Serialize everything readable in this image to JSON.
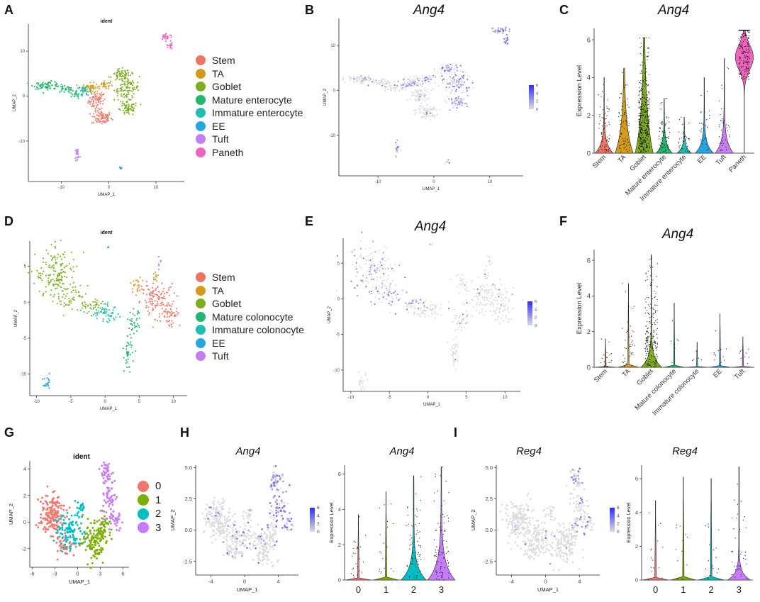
{
  "panel_letters": [
    "A",
    "B",
    "C",
    "D",
    "E",
    "F",
    "G",
    "H",
    "I"
  ],
  "colors": {
    "stem": "#ee7463",
    "ta": "#d39a1c",
    "goblet": "#7eae1f",
    "mature": "#23b66f",
    "immature": "#22bdb1",
    "ee": "#26a5e3",
    "tuft": "#c57ef2",
    "paneth": "#f064c0",
    "c0": "#f1766d",
    "c1": "#7cae00",
    "c2": "#00bfc4",
    "c3": "#c77cff",
    "feature_low": "#dcdcdc",
    "feature_high": "#2c2cff"
  },
  "legends": {
    "A": [
      "Stem",
      "TA",
      "Goblet",
      "Mature enterocyte",
      "Immature enterocyte",
      "EE",
      "Tuft",
      "Paneth"
    ],
    "D": [
      "Stem",
      "TA",
      "Goblet",
      "Mature colonocyte",
      "Immature colonocyte",
      "EE",
      "Tuft"
    ],
    "G": [
      "0",
      "1",
      "2",
      "3"
    ]
  },
  "chart_data": [
    {
      "panel": "A",
      "type": "scatter",
      "title": "ident",
      "xlabel": "UMAP_1",
      "ylabel": "UMAP_2",
      "xticks": [
        -10,
        0,
        10
      ],
      "yticks": [
        -10,
        0,
        10
      ],
      "xlim": [
        -17,
        16
      ],
      "ylim": [
        -19,
        16
      ],
      "clusters": [
        {
          "name": "Stem",
          "points": [
            [
              -2.5,
              -1,
              1.2,
              1.3,
              60
            ],
            [
              -1.5,
              -4.5,
              1.5,
              1.5,
              70
            ]
          ]
        },
        {
          "name": "TA",
          "points": [
            [
              -3.5,
              1.5,
              1.2,
              0.9,
              45
            ],
            [
              -1,
              2.2,
              1,
              0.8,
              25
            ]
          ]
        },
        {
          "name": "Goblet",
          "points": [
            [
              3.5,
              1.5,
              2,
              2,
              90
            ],
            [
              4,
              -2.5,
              1.5,
              1.2,
              50
            ],
            [
              2.5,
              4.5,
              1.5,
              1,
              45
            ]
          ]
        },
        {
          "name": "Mature enterocyte",
          "points": [
            [
              -13,
              2,
              2,
              0.6,
              60
            ],
            [
              -9,
              1.5,
              1.5,
              0.7,
              30
            ],
            [
              -7,
              0,
              1.5,
              0.6,
              20
            ]
          ]
        },
        {
          "name": "Immature enterocyte",
          "points": [
            [
              -5,
              1,
              1.2,
              0.7,
              25
            ]
          ]
        },
        {
          "name": "EE",
          "points": [
            [
              2.5,
              -16,
              0.3,
              0.5,
              8
            ]
          ]
        },
        {
          "name": "Tuft",
          "points": [
            [
              -6.5,
              -13,
              0.5,
              1.3,
              20
            ]
          ]
        },
        {
          "name": "Paneth",
          "points": [
            [
              12,
              13,
              1,
              0.6,
              25
            ],
            [
              13,
              11,
              0.5,
              1,
              15
            ]
          ]
        }
      ]
    },
    {
      "panel": "B",
      "type": "scatter",
      "title": "Ang4",
      "xlabel": "UMAP_1",
      "ylabel": "UMAP_2",
      "xticks": [
        -10,
        0,
        10
      ],
      "yticks": [
        -10,
        0,
        10
      ],
      "colorbar": [
        0,
        2,
        4,
        6
      ]
    },
    {
      "panel": "C",
      "type": "violin",
      "title": "Ang4",
      "ylabel": "Expression Level",
      "yticks": [
        0,
        2,
        4,
        6
      ],
      "ylim": [
        0,
        6.6
      ],
      "categories": [
        "Stem",
        "TA",
        "Goblet",
        "Mature enterocyte",
        "Immature enterocyte",
        "EE",
        "Tuft",
        "Paneth"
      ],
      "max_values": [
        4.0,
        4.5,
        6.1,
        2.9,
        1.9,
        4.0,
        5.0,
        6.5
      ]
    },
    {
      "panel": "D",
      "type": "scatter",
      "title": "ident",
      "xlabel": "UMAP_1",
      "ylabel": "UMAP_2",
      "xticks": [
        -10,
        -5,
        0,
        5,
        10
      ],
      "yticks": [
        -10,
        -5,
        0,
        5
      ],
      "xlim": [
        -11,
        12
      ],
      "ylim": [
        -13,
        8.5
      ]
    },
    {
      "panel": "E",
      "type": "scatter",
      "title": "Ang4",
      "xlabel": "UMAP_1",
      "ylabel": "UMAP_2",
      "xticks": [
        -10,
        -5,
        0,
        5,
        10
      ],
      "yticks": [
        -10,
        -5,
        0,
        5
      ],
      "colorbar": [
        0,
        2,
        4,
        6
      ]
    },
    {
      "panel": "F",
      "type": "violin",
      "title": "Ang4",
      "ylabel": "Expression Level",
      "yticks": [
        0,
        2,
        4,
        6
      ],
      "ylim": [
        0,
        6.6
      ],
      "categories": [
        "Stem",
        "TA",
        "Goblet",
        "Mature colonocyte",
        "Immature colonocyte",
        "EE",
        "Tuft"
      ],
      "max_values": [
        1.6,
        4.7,
        6.3,
        3.6,
        1.4,
        3.0,
        1.7
      ]
    },
    {
      "panel": "G",
      "type": "scatter",
      "title": "ident",
      "xlabel": "UMAP_1",
      "ylabel": "UMAP_2",
      "xticks": [
        -6,
        -3,
        0,
        3,
        6
      ],
      "yticks": [
        -2,
        0,
        2,
        4
      ],
      "xlim": [
        -6.3,
        6.8
      ],
      "ylim": [
        -3.4,
        4.6
      ]
    },
    {
      "panel": "H1",
      "type": "scatter",
      "title": "Ang4",
      "xlabel": "UMAP_1",
      "ylabel": "UMAP_2",
      "xticks": [
        -4,
        0,
        4
      ],
      "yticks": [
        -2.5,
        0.0,
        2.5,
        5.0
      ],
      "colorbar": [
        0,
        2,
        4,
        6
      ]
    },
    {
      "panel": "H2",
      "type": "violin",
      "title": "Ang4",
      "ylabel": "Expression Level",
      "yticks": [
        0,
        2,
        4,
        6
      ],
      "ylim": [
        0,
        6.5
      ],
      "categories": [
        "0",
        "1",
        "2",
        "3"
      ],
      "max_values": [
        3.7,
        5.0,
        5.9,
        6.4
      ]
    },
    {
      "panel": "I1",
      "type": "scatter",
      "title": "Reg4",
      "xlabel": "UMAP_1",
      "ylabel": "UMAP_2",
      "xticks": [
        -4,
        0,
        4
      ],
      "yticks": [
        -2.5,
        0.0,
        2.5,
        5.0
      ],
      "colorbar": [
        0,
        2,
        4,
        6
      ]
    },
    {
      "panel": "I2",
      "type": "violin",
      "title": "Reg4",
      "ylabel": "Expression Level",
      "yticks": [
        0,
        2,
        4,
        6
      ],
      "ylim": [
        0,
        6.8
      ],
      "categories": [
        "0",
        "1",
        "2",
        "3"
      ],
      "max_values": [
        4.7,
        6.1,
        6.0,
        6.7
      ]
    }
  ]
}
